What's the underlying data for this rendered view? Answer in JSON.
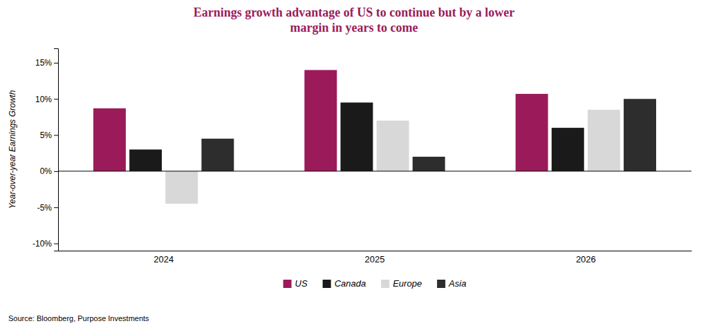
{
  "chart_data": {
    "type": "bar",
    "title": "Earnings growth advantage of US to continue but by a lower\nmargin in years to come",
    "ylabel": "Year-over-year Earnings Growth",
    "annotations": [
      "Source: Bloomberg, Purpose Investments"
    ],
    "categories": [
      "2024",
      "2025",
      "2026"
    ],
    "series": [
      {
        "name": "US",
        "color": "#9B1B5A",
        "values": [
          8.7,
          14.0,
          10.7
        ]
      },
      {
        "name": "Canada",
        "color": "#1a1a1a",
        "values": [
          3.0,
          9.5,
          6.0
        ]
      },
      {
        "name": "Europe",
        "color": "#d8d8d8",
        "values": [
          -4.5,
          7.0,
          8.5
        ]
      },
      {
        "name": "Asia",
        "color": "#2d2d2d",
        "values": [
          4.5,
          2.0,
          10.0
        ]
      }
    ],
    "ylim": [
      -11,
      17
    ],
    "yticks": [
      {
        "value": -10,
        "label": "-10%"
      },
      {
        "value": -5,
        "label": "-5%"
      },
      {
        "value": 0,
        "label": "0%"
      },
      {
        "value": 5,
        "label": "5%"
      },
      {
        "value": 10,
        "label": "10%"
      },
      {
        "value": 15,
        "label": "15%"
      }
    ],
    "grid": false,
    "legend": "bottom"
  }
}
